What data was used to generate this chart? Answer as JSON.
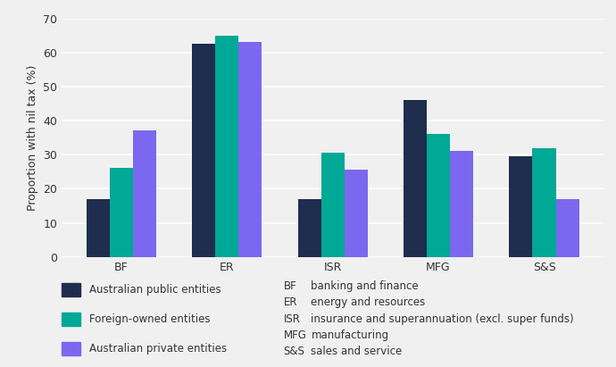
{
  "categories": [
    "BF",
    "ER",
    "ISR",
    "MFG",
    "S&S"
  ],
  "series": {
    "Australian public entities": [
      17,
      62.5,
      17,
      46,
      29.5
    ],
    "Foreign-owned entities": [
      26,
      65,
      30.5,
      36,
      32
    ],
    "Australian private entities": [
      37,
      63,
      25.5,
      31,
      17
    ]
  },
  "colors": {
    "Australian public entities": "#1f2d4e",
    "Foreign-owned entities": "#00a896",
    "Australian private entities": "#7b68ee"
  },
  "ylabel": "Proportion with nil tax (%)",
  "ylim": [
    0,
    70
  ],
  "yticks": [
    0,
    10,
    20,
    30,
    40,
    50,
    60,
    70
  ],
  "legend_labels": [
    "Australian public entities",
    "Foreign-owned entities",
    "Australian private entities"
  ],
  "abbreviation_labels": [
    [
      "BF",
      "banking and finance"
    ],
    [
      "ER",
      "energy and resources"
    ],
    [
      "ISR",
      "insurance and superannuation (excl. super funds)"
    ],
    [
      "MFG",
      "manufacturing"
    ],
    [
      "S&S",
      "sales and service"
    ]
  ],
  "bar_width": 0.22,
  "background_color": "#f0f0f0",
  "grid_color": "#ffffff",
  "font_color": "#333333"
}
